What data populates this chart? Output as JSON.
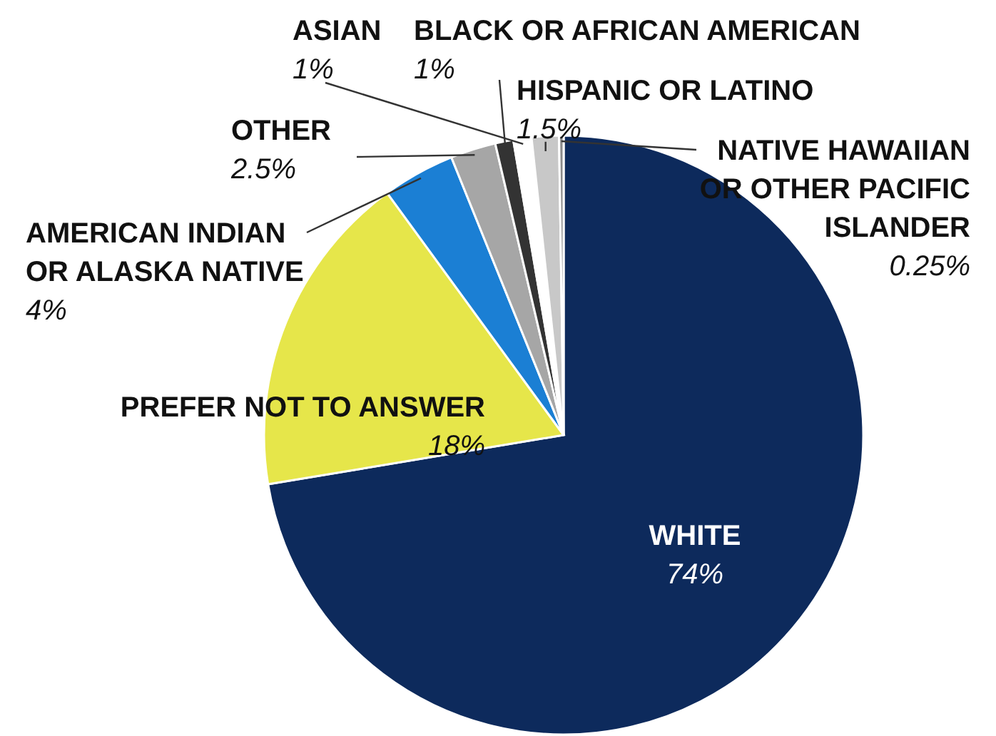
{
  "chart_data": {
    "type": "pie",
    "categories": [
      "WHITE",
      "PREFER NOT TO ANSWER",
      "AMERICAN INDIAN\nOR ALASKA NATIVE",
      "OTHER",
      "BLACK OR AFRICAN AMERICAN",
      "ASIAN",
      "HISPANIC OR LATINO",
      "NATIVE HAWAIIAN\nOR OTHER PACIFIC\nISLANDER"
    ],
    "values": [
      74,
      18,
      4,
      2.5,
      1,
      1,
      1.5,
      0.25
    ],
    "value_labels": [
      "74%",
      "18%",
      "4%",
      "2.5%",
      "1%",
      "1%",
      "1.5%",
      "0.25%"
    ],
    "colors": [
      "#0d2a5c",
      "#e6e64a",
      "#1b7fd4",
      "#a6a6a6",
      "#333333",
      "#ffffff",
      "#c8c8c8",
      "#8a8a8a"
    ]
  }
}
